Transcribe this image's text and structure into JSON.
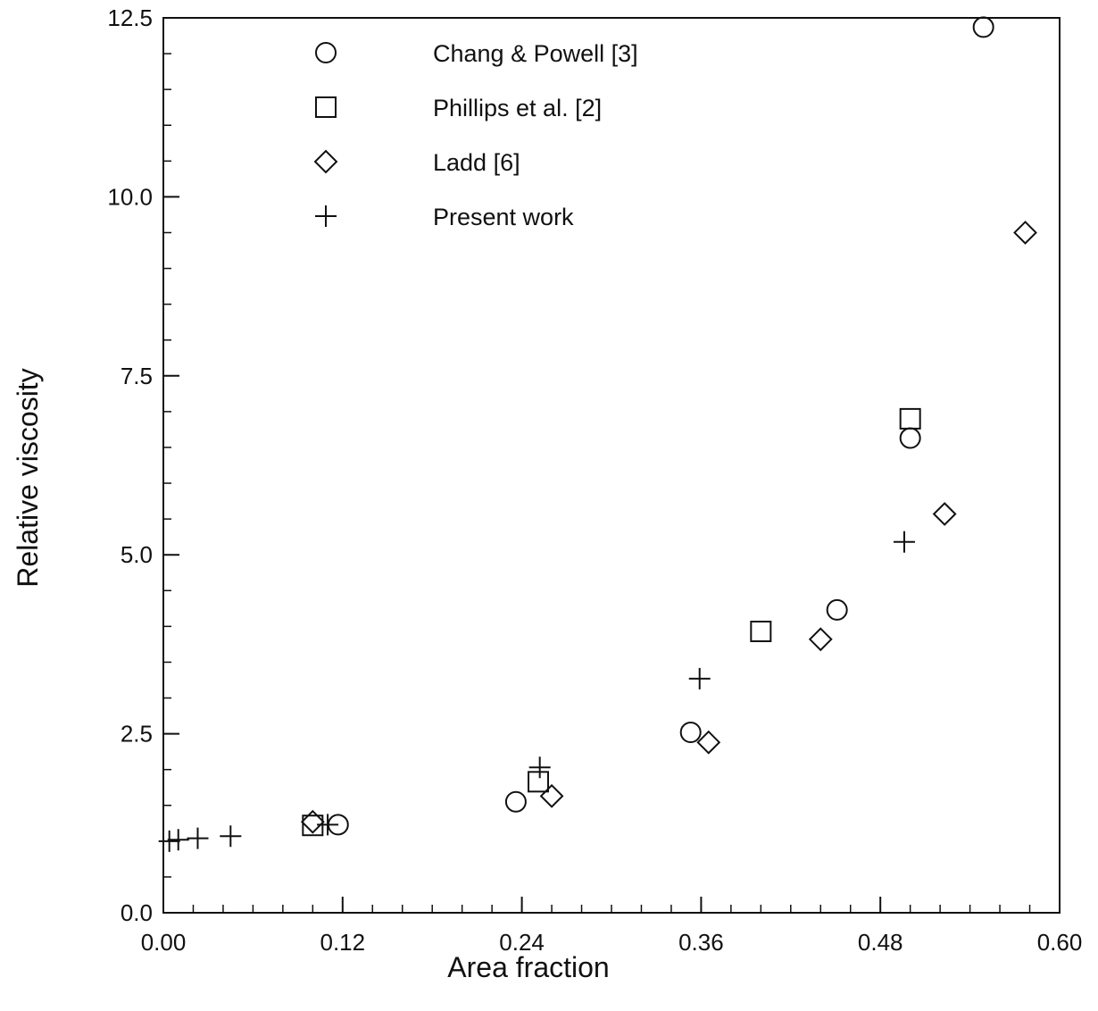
{
  "chart_data": {
    "type": "scatter",
    "xlabel": "Area fraction",
    "ylabel": "Relative viscosity",
    "xlim": [
      0,
      0.6
    ],
    "ylim": [
      0,
      12.5
    ],
    "x_ticks": [
      "0.00",
      "0.12",
      "0.24",
      "0.36",
      "0.48",
      "0.60"
    ],
    "y_ticks": [
      "0.0",
      "2.5",
      "5.0",
      "7.5",
      "10.0",
      "12.5"
    ],
    "x_minor_step": 0.02,
    "y_minor_step": 0.5,
    "grid": false,
    "legend_position": "top-center",
    "series": [
      {
        "name": "Chang & Powell [3]",
        "marker": "circle",
        "points": [
          {
            "x": 0.117,
            "y": 1.23
          },
          {
            "x": 0.236,
            "y": 1.55
          },
          {
            "x": 0.353,
            "y": 2.52
          },
          {
            "x": 0.451,
            "y": 4.23
          },
          {
            "x": 0.5,
            "y": 6.63
          },
          {
            "x": 0.549,
            "y": 12.37
          }
        ]
      },
      {
        "name": "Phillips et al. [2]",
        "marker": "square",
        "points": [
          {
            "x": 0.1,
            "y": 1.22
          },
          {
            "x": 0.251,
            "y": 1.83
          },
          {
            "x": 0.4,
            "y": 3.93
          },
          {
            "x": 0.5,
            "y": 6.9
          }
        ]
      },
      {
        "name": "Ladd [6]",
        "marker": "diamond",
        "points": [
          {
            "x": 0.1,
            "y": 1.27
          },
          {
            "x": 0.26,
            "y": 1.63
          },
          {
            "x": 0.365,
            "y": 2.38
          },
          {
            "x": 0.44,
            "y": 3.82
          },
          {
            "x": 0.523,
            "y": 5.57
          },
          {
            "x": 0.577,
            "y": 9.5
          }
        ]
      },
      {
        "name": "Present work",
        "marker": "plus",
        "points": [
          {
            "x": 0.004,
            "y": 1.0
          },
          {
            "x": 0.01,
            "y": 1.02
          },
          {
            "x": 0.023,
            "y": 1.04
          },
          {
            "x": 0.045,
            "y": 1.07
          },
          {
            "x": 0.11,
            "y": 1.23
          },
          {
            "x": 0.252,
            "y": 2.03
          },
          {
            "x": 0.359,
            "y": 3.27
          },
          {
            "x": 0.496,
            "y": 5.18
          }
        ]
      }
    ]
  }
}
